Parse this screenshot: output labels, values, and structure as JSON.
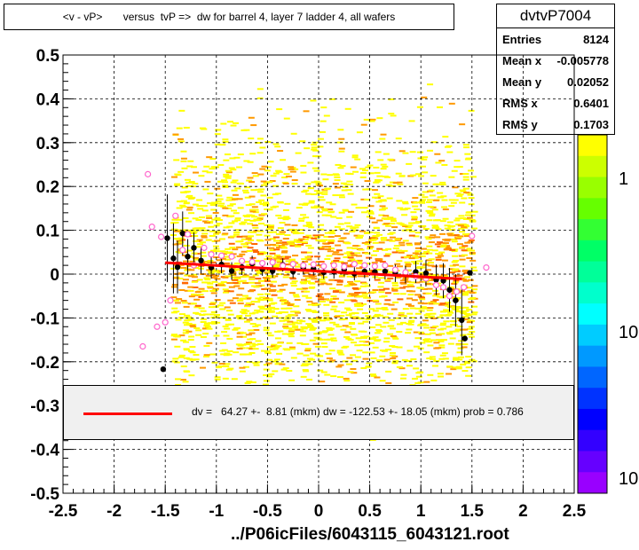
{
  "plot_title": "<v - vP>       versus  tvP =>  dw for barrel 4, layer 7 ladder 4, all wafers",
  "stats": {
    "name": "dvtvP7004",
    "rows": [
      {
        "label": "Entries",
        "value": "8124"
      },
      {
        "label": "Mean x",
        "value": "-0.005778"
      },
      {
        "label": "Mean y",
        "value": "0.02052"
      },
      {
        "label": "RMS x",
        "value": "0.6401"
      },
      {
        "label": "RMS y",
        "value": "0.1703"
      }
    ]
  },
  "x_axis_title": "../P06icFiles/6043115_6043121.root",
  "legend_text": "dv =   64.27 +-  8.81 (mkm) dw = -122.53 +- 18.05 (mkm) prob = 0.786",
  "colors": {
    "fit_line": "#ff0000",
    "profile_points": "#000000",
    "alt_points": "#ff66cc"
  },
  "palette_labels": [
    "1",
    "10",
    "10"
  ],
  "chart_data": {
    "type": "scatter",
    "xlim": [
      -2.5,
      2.5
    ],
    "ylim": [
      -0.5,
      0.5
    ],
    "x_ticks": [
      "-2.5",
      "-2",
      "-1.5",
      "-1",
      "-0.5",
      "0",
      "0.5",
      "1",
      "1.5",
      "2",
      "2.5"
    ],
    "y_ticks": [
      "0.5",
      "0.4",
      "0.3",
      "0.2",
      "0.1",
      "0",
      "-0.1",
      "-0.2",
      "-0.3",
      "-0.4",
      "-0.5"
    ],
    "grid": true,
    "fit_line": {
      "x": [
        -1.5,
        1.4
      ],
      "y": [
        0.026,
        -0.011
      ]
    },
    "profile_black": [
      {
        "x": -1.48,
        "y": 0.082,
        "err": 0.1
      },
      {
        "x": -1.42,
        "y": 0.036,
        "err": 0.08
      },
      {
        "x": -1.38,
        "y": 0.016,
        "err": 0.06
      },
      {
        "x": -1.33,
        "y": 0.093,
        "err": 0.05
      },
      {
        "x": -1.28,
        "y": 0.04,
        "err": 0.04
      },
      {
        "x": -1.22,
        "y": 0.06,
        "err": 0.035
      },
      {
        "x": -1.15,
        "y": 0.031,
        "err": 0.03
      },
      {
        "x": -1.05,
        "y": 0.015,
        "err": 0.025
      },
      {
        "x": -0.95,
        "y": 0.022,
        "err": 0.02
      },
      {
        "x": -0.85,
        "y": 0.007,
        "err": 0.02
      },
      {
        "x": -0.75,
        "y": 0.016,
        "err": 0.018
      },
      {
        "x": -0.65,
        "y": 0.024,
        "err": 0.018
      },
      {
        "x": -0.55,
        "y": 0.011,
        "err": 0.015
      },
      {
        "x": -0.45,
        "y": 0.007,
        "err": 0.015
      },
      {
        "x": -0.35,
        "y": 0.021,
        "err": 0.015
      },
      {
        "x": -0.25,
        "y": 0.006,
        "err": 0.015
      },
      {
        "x": -0.15,
        "y": 0.014,
        "err": 0.015
      },
      {
        "x": -0.05,
        "y": 0.012,
        "err": 0.015
      },
      {
        "x": 0.05,
        "y": 0.004,
        "err": 0.015
      },
      {
        "x": 0.15,
        "y": 0.005,
        "err": 0.015
      },
      {
        "x": 0.25,
        "y": 0.01,
        "err": 0.015
      },
      {
        "x": 0.35,
        "y": 0.001,
        "err": 0.015
      },
      {
        "x": 0.45,
        "y": 0.006,
        "err": 0.015
      },
      {
        "x": 0.55,
        "y": 0.005,
        "err": 0.016
      },
      {
        "x": 0.65,
        "y": 0.006,
        "err": 0.018
      },
      {
        "x": 0.75,
        "y": 0.002,
        "err": 0.02
      },
      {
        "x": 0.85,
        "y": -0.001,
        "err": 0.02
      },
      {
        "x": 0.95,
        "y": 0.005,
        "err": 0.025
      },
      {
        "x": 1.05,
        "y": 0.002,
        "err": 0.03
      },
      {
        "x": 1.15,
        "y": -0.013,
        "err": 0.035
      },
      {
        "x": 1.22,
        "y": -0.015,
        "err": 0.04
      },
      {
        "x": 1.28,
        "y": -0.036,
        "err": 0.05
      },
      {
        "x": 1.34,
        "y": -0.06,
        "err": 0.06
      },
      {
        "x": 1.4,
        "y": -0.105,
        "err": 0.08
      },
      {
        "x": 1.43,
        "y": -0.147,
        "err": 0.0
      },
      {
        "x": -1.52,
        "y": -0.217,
        "err": 0.0
      },
      {
        "x": 1.48,
        "y": 0.003,
        "err": 0.0
      }
    ],
    "profile_pink": [
      {
        "x": -1.72,
        "y": -0.165
      },
      {
        "x": -1.67,
        "y": 0.228
      },
      {
        "x": -1.63,
        "y": 0.108
      },
      {
        "x": -1.58,
        "y": -0.12
      },
      {
        "x": -1.54,
        "y": 0.085
      },
      {
        "x": -1.5,
        "y": -0.11
      },
      {
        "x": -1.45,
        "y": -0.06
      },
      {
        "x": -1.4,
        "y": 0.133
      },
      {
        "x": -1.33,
        "y": 0.055
      },
      {
        "x": -1.28,
        "y": 0.091
      },
      {
        "x": -1.22,
        "y": 0.02
      },
      {
        "x": -1.12,
        "y": 0.06
      },
      {
        "x": -1.05,
        "y": 0.045
      },
      {
        "x": -0.95,
        "y": 0.042
      },
      {
        "x": -0.85,
        "y": 0.04
      },
      {
        "x": -0.75,
        "y": 0.03
      },
      {
        "x": -0.65,
        "y": 0.028
      },
      {
        "x": -0.55,
        "y": 0.025
      },
      {
        "x": -0.45,
        "y": 0.027
      },
      {
        "x": -0.35,
        "y": 0.019
      },
      {
        "x": -0.25,
        "y": 0.023
      },
      {
        "x": -0.15,
        "y": 0.02
      },
      {
        "x": -0.05,
        "y": 0.022
      },
      {
        "x": 0.05,
        "y": 0.018
      },
      {
        "x": 0.15,
        "y": 0.02
      },
      {
        "x": 0.25,
        "y": 0.017
      },
      {
        "x": 0.35,
        "y": 0.023
      },
      {
        "x": 0.45,
        "y": 0.02
      },
      {
        "x": 0.55,
        "y": 0.018
      },
      {
        "x": 0.65,
        "y": 0.02
      },
      {
        "x": 0.75,
        "y": 0.01
      },
      {
        "x": 0.85,
        "y": 0.004
      },
      {
        "x": 0.95,
        "y": -0.005
      },
      {
        "x": 1.05,
        "y": -0.01
      },
      {
        "x": 1.15,
        "y": -0.025
      },
      {
        "x": 1.22,
        "y": -0.03
      },
      {
        "x": 1.28,
        "y": -0.05
      },
      {
        "x": 1.35,
        "y": -0.04
      },
      {
        "x": 1.42,
        "y": -0.03
      },
      {
        "x": 1.5,
        "y": 0.087
      },
      {
        "x": 1.64,
        "y": 0.015
      }
    ]
  }
}
